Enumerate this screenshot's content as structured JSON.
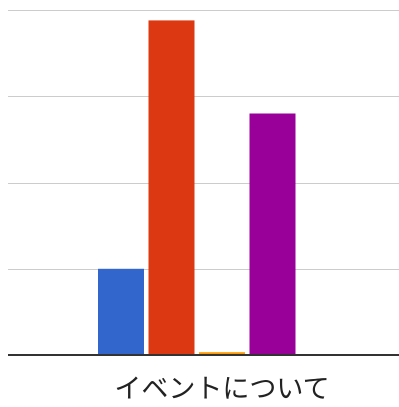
{
  "chart_data": {
    "type": "bar",
    "title": "",
    "xlabel": "",
    "ylabel": "",
    "categories": [
      "イベントについて"
    ],
    "series": [
      {
        "color": "#3366cc",
        "values": [
          25
        ]
      },
      {
        "color": "#dc3912",
        "values": [
          97
        ]
      },
      {
        "color": "#ff9900",
        "values": [
          0.8
        ]
      },
      {
        "color": "#990099",
        "values": [
          70
        ]
      }
    ],
    "ylim": [
      0,
      100
    ],
    "yticks": [
      0,
      25,
      50,
      75,
      100
    ],
    "tick_labels_visible": false,
    "grid": true,
    "legend": "none"
  }
}
